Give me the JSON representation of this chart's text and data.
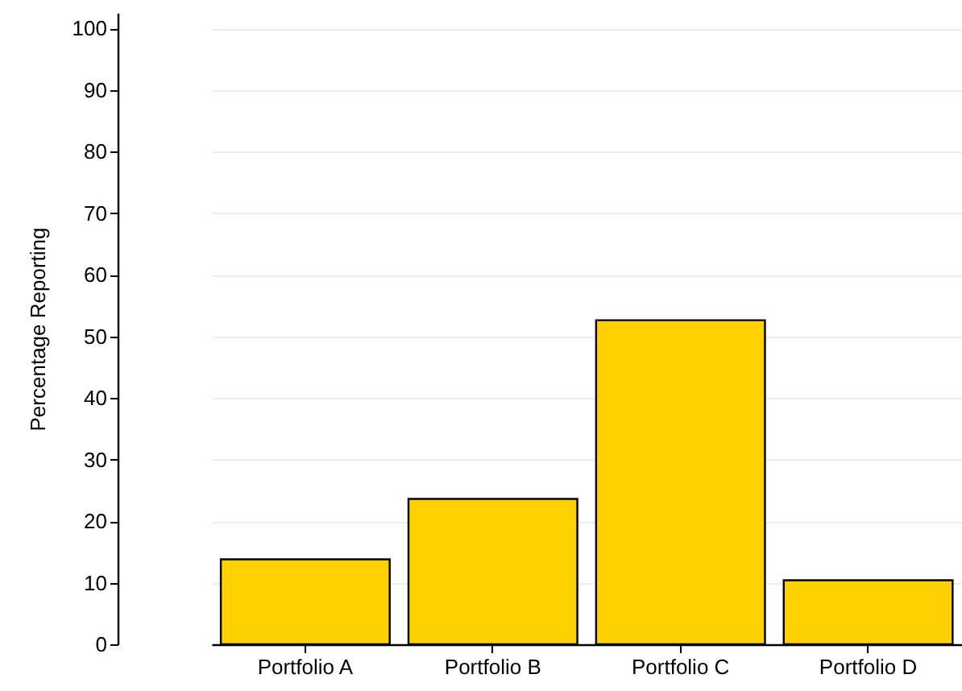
{
  "chart_data": {
    "type": "bar",
    "ylabel": "Percentage Reporting",
    "categories": [
      "Portfolio A",
      "Portfolio B",
      "Portfolio C",
      "Portfolio D"
    ],
    "values": [
      13.8,
      23.6,
      52.6,
      10.4
    ],
    "color": "#ffd100",
    "ylim": [
      0,
      102.5
    ],
    "yticks": [
      0,
      10,
      20,
      30,
      40,
      50,
      60,
      70,
      80,
      90,
      100
    ],
    "grid": "y"
  }
}
